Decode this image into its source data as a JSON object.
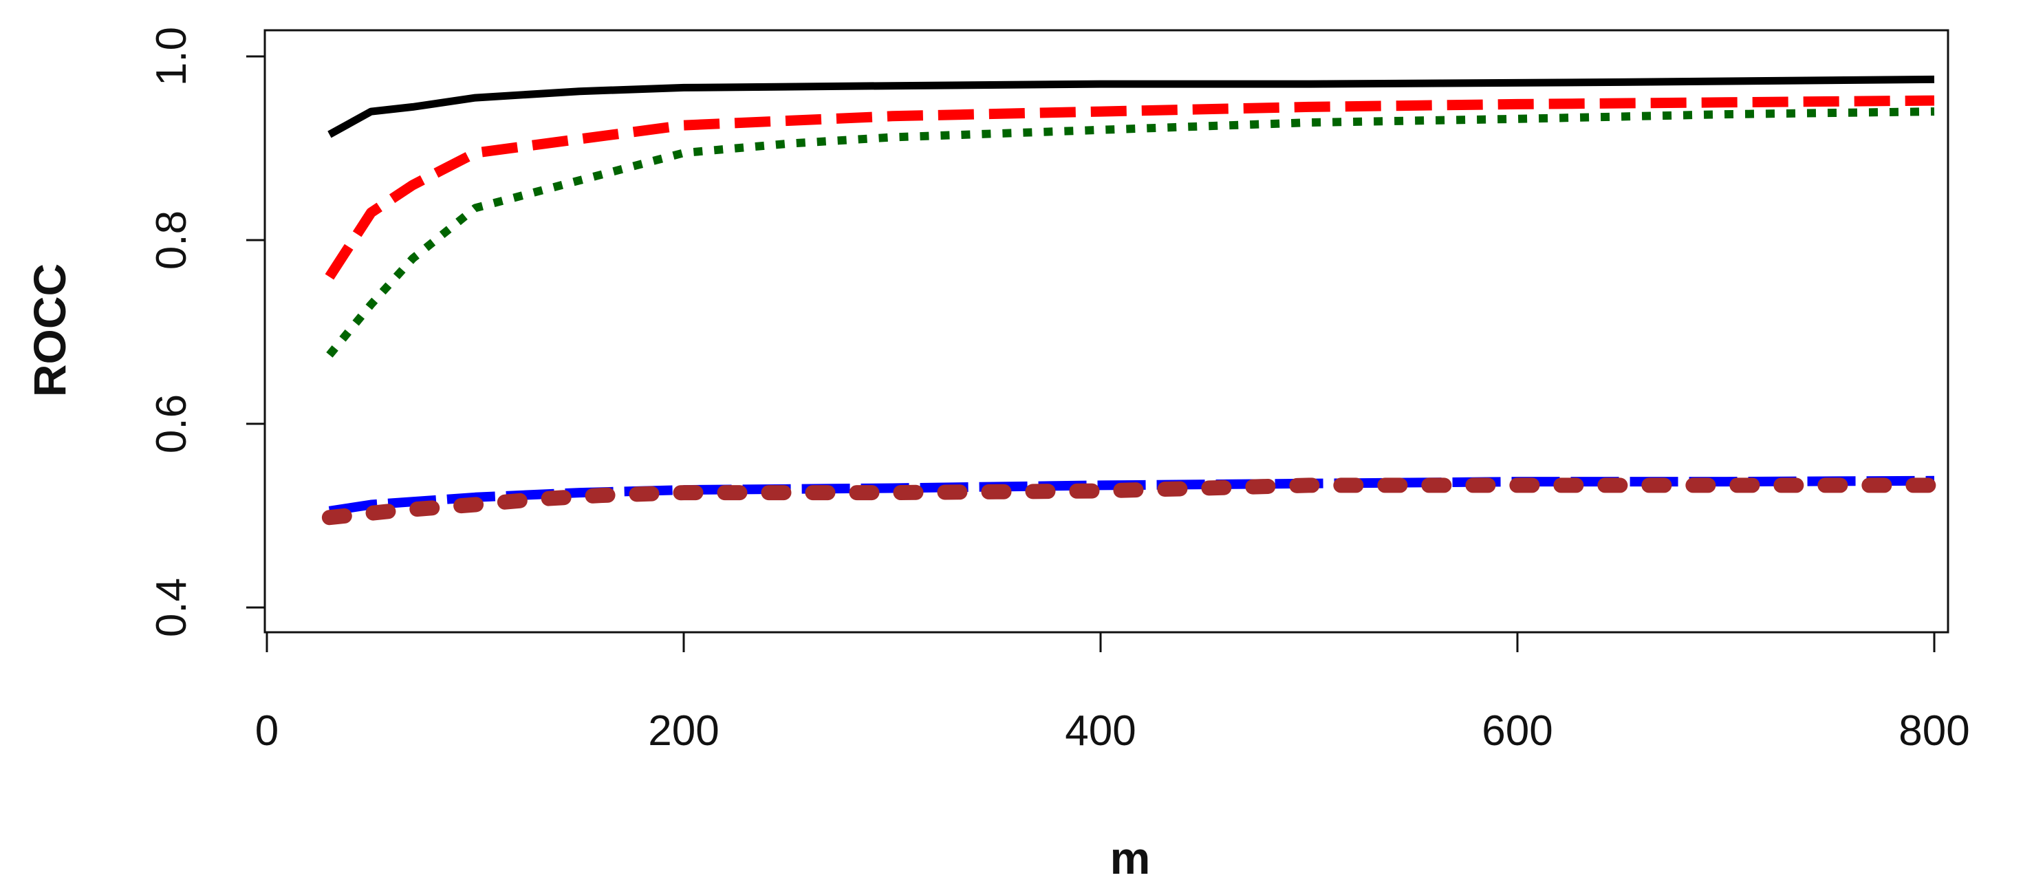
{
  "chart_data": {
    "type": "line",
    "xlabel": "m",
    "ylabel": "ROCC",
    "xlim": [
      0,
      800
    ],
    "ylim": [
      0.4,
      1.0
    ],
    "x_ticks": [
      "0",
      "200",
      "400",
      "600",
      "800"
    ],
    "y_ticks": [
      "0.4",
      "0.6",
      "0.8",
      "1.0"
    ],
    "grid": false,
    "legend": "none",
    "series": [
      {
        "color": "#000000",
        "line_style": "solid",
        "points": [
          [
            30,
            0.915
          ],
          [
            50,
            0.94
          ],
          [
            70,
            0.945
          ],
          [
            100,
            0.955
          ],
          [
            150,
            0.962
          ],
          [
            200,
            0.966
          ],
          [
            300,
            0.968
          ],
          [
            400,
            0.97
          ],
          [
            500,
            0.97
          ],
          [
            650,
            0.972
          ],
          [
            800,
            0.975
          ]
        ]
      },
      {
        "color": "#ff0000",
        "line_style": "dashed",
        "points": [
          [
            30,
            0.76
          ],
          [
            50,
            0.83
          ],
          [
            70,
            0.86
          ],
          [
            100,
            0.895
          ],
          [
            150,
            0.91
          ],
          [
            200,
            0.925
          ],
          [
            300,
            0.935
          ],
          [
            400,
            0.94
          ],
          [
            500,
            0.945
          ],
          [
            600,
            0.948
          ],
          [
            700,
            0.95
          ],
          [
            800,
            0.952
          ]
        ]
      },
      {
        "color": "#006400",
        "line_style": "dotted",
        "points": [
          [
            30,
            0.675
          ],
          [
            50,
            0.73
          ],
          [
            70,
            0.78
          ],
          [
            100,
            0.835
          ],
          [
            150,
            0.865
          ],
          [
            200,
            0.895
          ],
          [
            250,
            0.905
          ],
          [
            300,
            0.912
          ],
          [
            400,
            0.92
          ],
          [
            500,
            0.928
          ],
          [
            600,
            0.932
          ],
          [
            700,
            0.937
          ],
          [
            800,
            0.94
          ]
        ]
      },
      {
        "color": "#0000ff",
        "line_style": "longdash",
        "points": [
          [
            30,
            0.505
          ],
          [
            50,
            0.512
          ],
          [
            100,
            0.52
          ],
          [
            150,
            0.525
          ],
          [
            200,
            0.528
          ],
          [
            300,
            0.53
          ],
          [
            400,
            0.533
          ],
          [
            500,
            0.535
          ],
          [
            600,
            0.537
          ],
          [
            700,
            0.537
          ],
          [
            800,
            0.538
          ]
        ]
      },
      {
        "color": "#a52a2a",
        "line_style": "dash-dot-thick",
        "points": [
          [
            30,
            0.498
          ],
          [
            60,
            0.505
          ],
          [
            100,
            0.512
          ],
          [
            130,
            0.518
          ],
          [
            160,
            0.522
          ],
          [
            200,
            0.525
          ],
          [
            250,
            0.525
          ],
          [
            300,
            0.525
          ],
          [
            350,
            0.526
          ],
          [
            400,
            0.527
          ],
          [
            450,
            0.53
          ],
          [
            500,
            0.533
          ],
          [
            600,
            0.533
          ],
          [
            700,
            0.533
          ],
          [
            800,
            0.533
          ]
        ]
      }
    ]
  }
}
